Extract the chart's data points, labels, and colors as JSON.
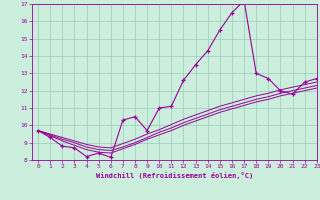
{
  "xlabel": "Windchill (Refroidissement éolien,°C)",
  "bg_color": "#cceedd",
  "line_color": "#990099",
  "grid_color": "#99ccbb",
  "x_data": [
    0,
    1,
    2,
    3,
    4,
    5,
    6,
    7,
    8,
    9,
    10,
    11,
    12,
    13,
    14,
    15,
    16,
    17,
    18,
    19,
    20,
    21,
    22,
    23
  ],
  "y_main": [
    9.7,
    9.3,
    8.8,
    8.7,
    8.2,
    8.4,
    8.15,
    10.3,
    10.5,
    9.7,
    11.0,
    11.1,
    12.6,
    13.5,
    14.3,
    15.5,
    16.5,
    17.2,
    13.0,
    12.7,
    12.0,
    11.8,
    12.5,
    12.7
  ],
  "y_line1": [
    9.7,
    9.45,
    9.2,
    9.0,
    8.75,
    8.6,
    8.55,
    8.75,
    9.0,
    9.3,
    9.6,
    9.85,
    10.15,
    10.4,
    10.65,
    10.9,
    11.1,
    11.3,
    11.5,
    11.65,
    11.85,
    12.0,
    12.15,
    12.3
  ],
  "y_line2": [
    9.7,
    9.5,
    9.3,
    9.1,
    8.9,
    8.75,
    8.7,
    8.95,
    9.2,
    9.5,
    9.75,
    10.05,
    10.35,
    10.6,
    10.85,
    11.1,
    11.3,
    11.5,
    11.7,
    11.85,
    12.05,
    12.2,
    12.35,
    12.5
  ],
  "y_line3": [
    9.7,
    9.4,
    9.1,
    8.85,
    8.6,
    8.45,
    8.4,
    8.65,
    8.9,
    9.2,
    9.45,
    9.7,
    10.0,
    10.25,
    10.5,
    10.75,
    10.95,
    11.15,
    11.35,
    11.5,
    11.7,
    11.85,
    12.0,
    12.15
  ],
  "ylim": [
    8,
    17
  ],
  "xlim": [
    -0.5,
    23
  ],
  "yticks": [
    8,
    9,
    10,
    11,
    12,
    13,
    14,
    15,
    16,
    17
  ],
  "xticks": [
    0,
    1,
    2,
    3,
    4,
    5,
    6,
    7,
    8,
    9,
    10,
    11,
    12,
    13,
    14,
    15,
    16,
    17,
    18,
    19,
    20,
    21,
    22,
    23
  ]
}
